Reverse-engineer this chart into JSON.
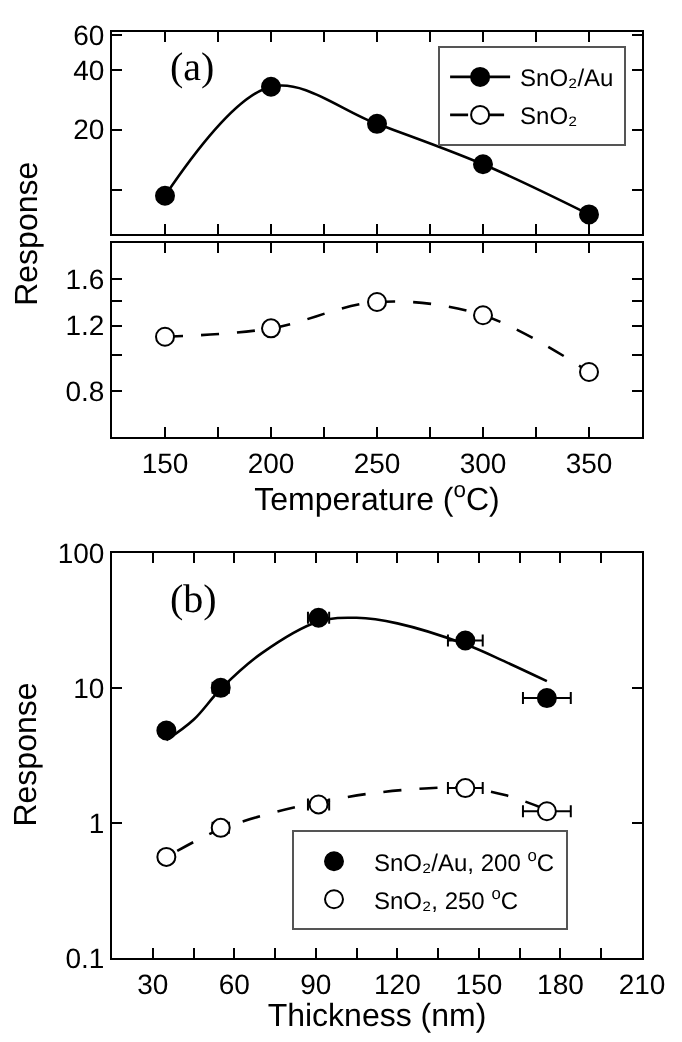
{
  "chart_data": [
    {
      "type": "line",
      "annotations": [
        "(a)"
      ],
      "ylabel": "Response",
      "log": true,
      "x": [
        150,
        200,
        250,
        300,
        350
      ],
      "xlim": [
        125,
        375
      ],
      "xticks": [
        150,
        {
          "value": 175,
          "label": null
        },
        200,
        {
          "value": 225,
          "label": null
        },
        250,
        {
          "value": 275,
          "label": null
        },
        300,
        {
          "value": 325,
          "label": null
        },
        350
      ],
      "ylim": [
        6,
        62
      ],
      "yticks": [
        {
          "value": 10,
          "label": null
        },
        20,
        40,
        60
      ],
      "tick_labels": "y",
      "legend": "top right",
      "series": [
        {
          "name": "SnO₂/Au",
          "color": "#000000",
          "marker": "circle",
          "line_style": "solid",
          "values": [
            9.3,
            32.9,
            21.4,
            13.4,
            7.5
          ]
        }
      ]
    },
    {
      "type": "line",
      "xlabel": "Temperature ($^{o}$C)",
      "log": true,
      "x": [
        150,
        200,
        250,
        300,
        350
      ],
      "xlim": [
        125,
        375
      ],
      "xticks": [
        150,
        {
          "value": 175,
          "label": null
        },
        200,
        {
          "value": 225,
          "label": null
        },
        250,
        {
          "value": 275,
          "label": null
        },
        300,
        {
          "value": 325,
          "label": null
        },
        350
      ],
      "ylim": [
        0.6,
        2.0
      ],
      "yticks": [
        0.8,
        {
          "value": 1.0,
          "label": null
        },
        1.2,
        {
          "value": 1.4,
          "label": null
        },
        1.6
      ],
      "series": [
        {
          "name": "SnO₂",
          "color": "#ffffff",
          "marker": "circle",
          "line_style": "dashed",
          "values": [
            1.12,
            1.18,
            1.39,
            1.28,
            0.9
          ]
        }
      ]
    },
    {
      "type": "scatter",
      "annotations": [
        "(b)"
      ],
      "xlabel": "Thickness (nm)",
      "ylabel": "Response",
      "log": true,
      "xlim": [
        15,
        210
      ],
      "xticks": [
        30,
        {
          "value": 45,
          "label": null
        },
        60,
        {
          "value": 75,
          "label": null
        },
        90,
        {
          "value": 105,
          "label": null
        },
        120,
        {
          "value": 135,
          "label": null
        },
        150,
        {
          "value": 165,
          "label": null
        },
        180,
        {
          "value": 195,
          "label": null
        },
        210
      ],
      "ylim": [
        0.1,
        100
      ],
      "yticks": [
        0.1,
        1,
        10,
        100
      ],
      "legend": "bottom",
      "series": [
        {
          "type": "line",
          "color": "#000000",
          "line_style": "solid",
          "marker": "none",
          "x": [
            35,
            45,
            55,
            70,
            91,
            105,
            120,
            145,
            160,
            175
          ],
          "values": [
            4.1,
            5.8,
            9.8,
            18,
            31,
            33,
            30,
            21,
            15.5,
            11.2
          ]
        },
        {
          "type": "line",
          "color": "#000000",
          "line_style": "dashed",
          "marker": "none",
          "x": [
            39,
            55,
            75,
            91,
            110,
            130,
            145,
            160,
            175
          ],
          "values": [
            0.62,
            0.9,
            1.2,
            1.42,
            1.65,
            1.8,
            1.82,
            1.6,
            1.25
          ]
        },
        {
          "name": "SnO₂/Au, 200 $^{o}$C",
          "color": "#000000",
          "marker": "circle",
          "x": [
            35,
            55,
            91,
            145,
            175
          ],
          "values": [
            4.83,
            10,
            33,
            22.4,
            8.4
          ],
          "xerrors": [
            2.6,
            3,
            3.9,
            6.4,
            8.8
          ]
        },
        {
          "name": "SnO₂, 250 $^{o}$C",
          "color": "#ffffff",
          "marker": "circle",
          "x": [
            35,
            55,
            91,
            145,
            175
          ],
          "values": [
            0.56,
            0.92,
            1.37,
            1.81,
            1.22
          ],
          "xerrors": [
            2.6,
            3,
            3.9,
            6.4,
            8.8
          ]
        }
      ]
    }
  ]
}
